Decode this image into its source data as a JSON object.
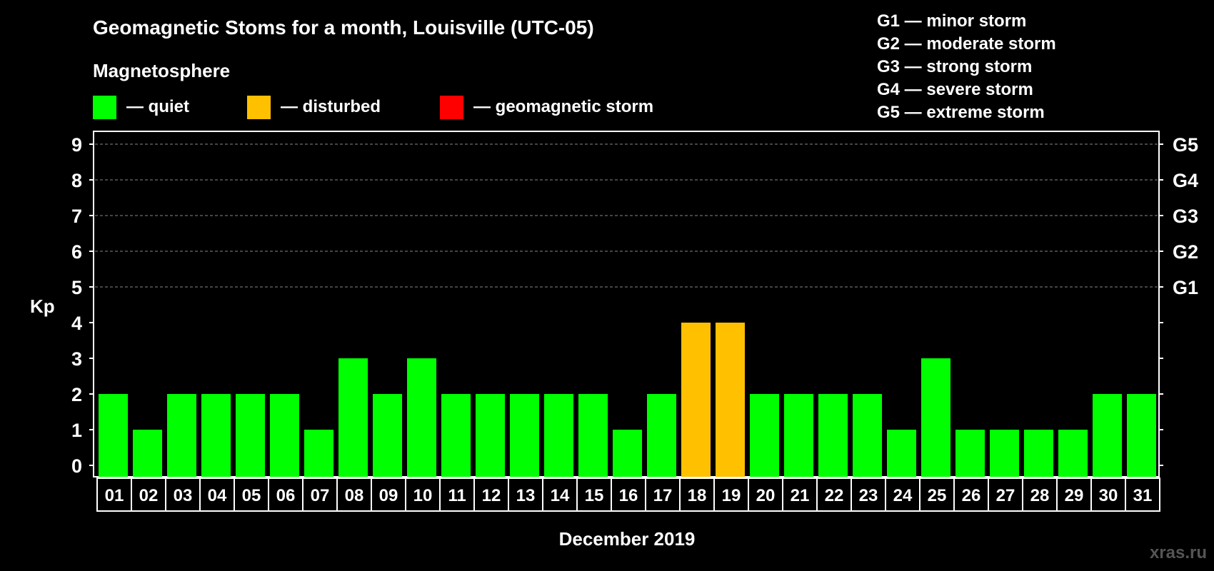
{
  "title": "Geomagnetic Stoms for a month, Louisville (UTC-05)",
  "legend_heading": "Magnetosphere",
  "legend": [
    {
      "label": "— quiet",
      "color": "#00ff00"
    },
    {
      "label": "— disturbed",
      "color": "#ffc000"
    },
    {
      "label": "— geomagnetic storm",
      "color": "#ff0000"
    }
  ],
  "storm_scale": [
    "G1 — minor storm",
    "G2 — moderate storm",
    "G3 — strong storm",
    "G4 — severe storm",
    "G5 — extreme storm"
  ],
  "watermark": "xras.ru",
  "chart_data": {
    "type": "bar",
    "title": "Geomagnetic Stoms for a month, Louisville (UTC-05)",
    "xlabel": "December 2019",
    "ylabel": "Kp",
    "ylim": [
      0,
      9
    ],
    "yticks": [
      "0",
      "1",
      "2",
      "3",
      "4",
      "5",
      "6",
      "7",
      "8",
      "9"
    ],
    "right_ticks": [
      {
        "kp": 5,
        "label": "G1"
      },
      {
        "kp": 6,
        "label": "G2"
      },
      {
        "kp": 7,
        "label": "G3"
      },
      {
        "kp": 8,
        "label": "G4"
      },
      {
        "kp": 9,
        "label": "G5"
      }
    ],
    "grid": "dashed horizontal at 5-9",
    "categories": [
      "01",
      "02",
      "03",
      "04",
      "05",
      "06",
      "07",
      "08",
      "09",
      "10",
      "11",
      "12",
      "13",
      "14",
      "15",
      "16",
      "17",
      "18",
      "19",
      "20",
      "21",
      "22",
      "23",
      "24",
      "25",
      "26",
      "27",
      "28",
      "29",
      "30",
      "31"
    ],
    "values": [
      2,
      1,
      2,
      2,
      2,
      2,
      1,
      3,
      2,
      3,
      2,
      2,
      2,
      2,
      2,
      1,
      2,
      4,
      4,
      2,
      2,
      2,
      2,
      1,
      3,
      1,
      1,
      1,
      1,
      2,
      2
    ],
    "colors": {
      "quiet": "#00ff00",
      "disturbed": "#ffc000",
      "storm": "#ff0000"
    }
  }
}
